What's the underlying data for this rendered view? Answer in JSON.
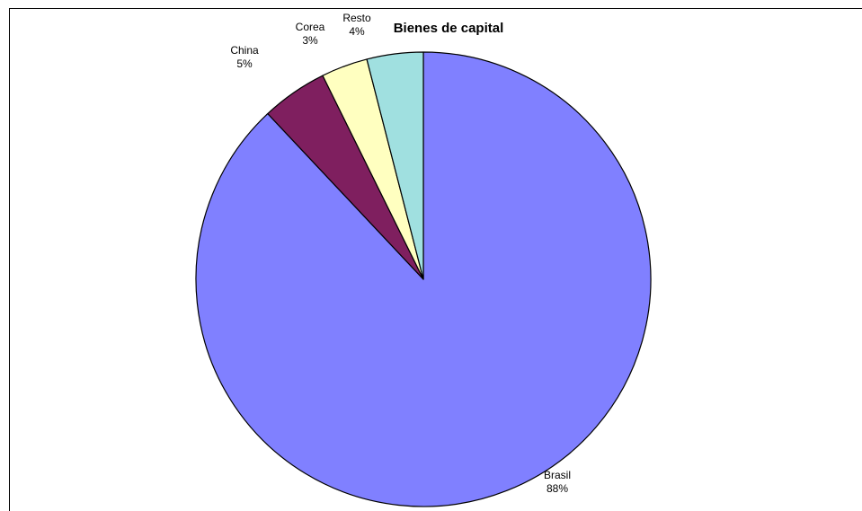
{
  "chart_data": {
    "type": "pie",
    "title": "Bienes de capital",
    "slices": [
      {
        "label": "Brasil",
        "percent_label": "88%",
        "value": 88.0,
        "color": "#8080FF"
      },
      {
        "label": "China",
        "percent_label": "5%",
        "value": 4.7,
        "color": "#7F1F5F"
      },
      {
        "label": "Corea",
        "percent_label": "3%",
        "value": 3.3,
        "color": "#FFFFC0"
      },
      {
        "label": "Resto",
        "percent_label": "4%",
        "value": 4.0,
        "color": "#A0E0E0"
      }
    ],
    "legend": "none"
  }
}
